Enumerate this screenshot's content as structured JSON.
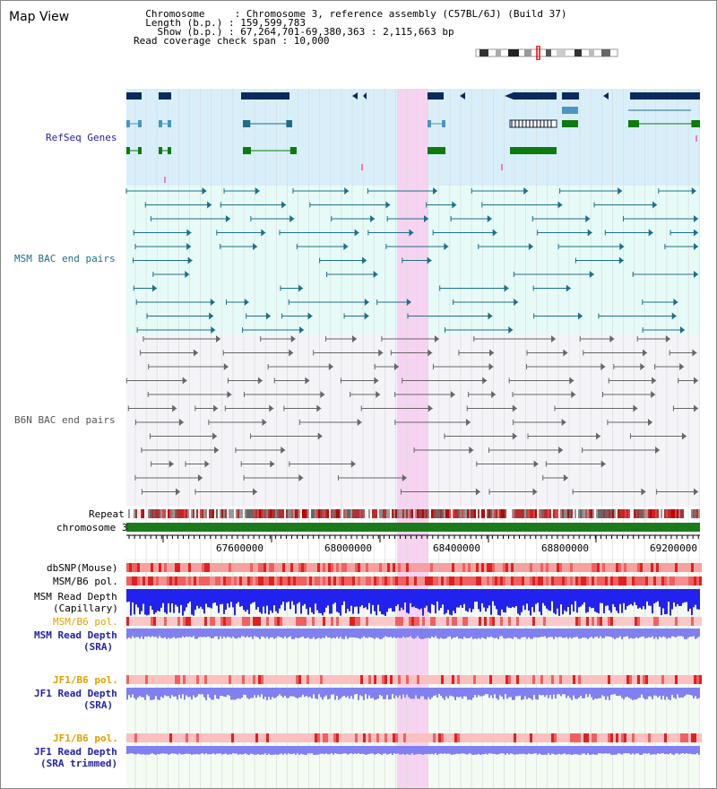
{
  "header": {
    "title": "Map View",
    "info_lines": [
      "  Chromosome     : Chromosome 3, reference assembly (C57BL/6J) (Build 37)",
      "  Length (b.p.) : 159,599,783",
      "    Show (b.p.) : 67,264,701-69,380,363 : 2,115,663 bp",
      "Read coverage check span : 10,000"
    ]
  },
  "tracks": {
    "refseq": "RefSeq Genes",
    "msm_bac": "MSM BAC end pairs",
    "b6n_bac": "B6N BAC end pairs",
    "repeat": "Repeat",
    "chromosome": "chromosome 3",
    "dbsnp": "dbSNP(Mouse)",
    "msm_b6_pol": "MSM/B6 pol.",
    "msm_read_depth_cap_1": "MSM Read Depth",
    "msm_read_depth_cap_2": "(Capillary)",
    "msm_b6_pol_2": "MSM/B6 pol.",
    "msm_read_depth_sra_1": "MSM Read Depth",
    "msm_read_depth_sra_2": "(SRA)",
    "jf1_b6_pol": "JF1/B6 pol.",
    "jf1_read_depth_sra_1": "JF1 Read Depth",
    "jf1_read_depth_sra_2": "(SRA)",
    "jf1_b6_pol_2": "JF1/B6 pol.",
    "jf1_read_depth_trim_1": "JF1 Read Depth",
    "jf1_read_depth_trim_2": "(SRA trimmed)"
  },
  "axis": {
    "ticks": [
      "67600000",
      "68000000",
      "68400000",
      "68800000",
      "69200000"
    ]
  },
  "colors": {
    "refseq_bg": "#d8effa",
    "bac_bg": "#e6fbf7",
    "b6n_bg": "#f4f4f8",
    "highlight": "#f7d3f2",
    "gene_navy": "#0a2a5e",
    "gene_cyan": "#4a96c0",
    "gene_green": "#0d7a0d",
    "msm_line": "#1d6f88",
    "b6n_line": "#666666",
    "chrom_green": "#1b7a1b",
    "depth_blue": "#2222ee",
    "depth_light": "#8080f0",
    "label_blue": "#2222aa",
    "label_orange": "#e0a000",
    "label_teal": "#1d6f88"
  }
}
